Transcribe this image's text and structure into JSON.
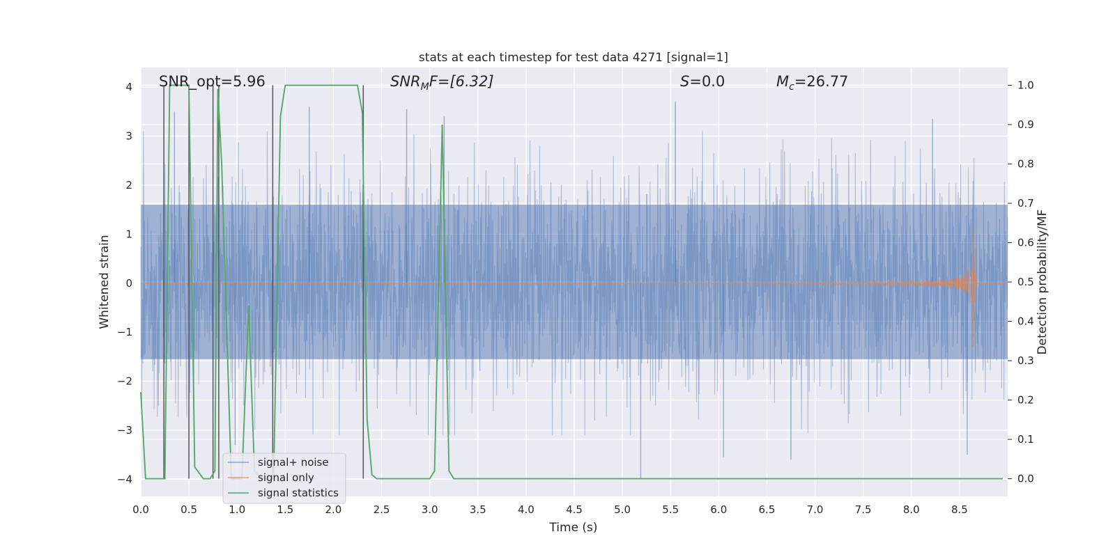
{
  "chart_data": {
    "type": "line",
    "title": "stats at each timestep for test data 4271 [signal=1]",
    "xlabel": "Time (s)",
    "ylabel_left": "Whitened strain",
    "ylabel_right": "Detection probability/MF",
    "xlim": [
      0.0,
      9.0
    ],
    "ylim_left": [
      -4.35,
      4.4
    ],
    "ylim_right": [
      -0.045,
      1.045
    ],
    "x_ticks": [
      0.0,
      0.5,
      1.0,
      1.5,
      2.0,
      2.5,
      3.0,
      3.5,
      4.0,
      4.5,
      5.0,
      5.5,
      6.0,
      6.5,
      7.0,
      7.5,
      8.0,
      8.5
    ],
    "x_tick_labels": [
      "0.0",
      "0.5",
      "1.0",
      "1.5",
      "2.0",
      "2.5",
      "3.0",
      "3.5",
      "4.0",
      "4.5",
      "5.0",
      "5.5",
      "6.0",
      "6.5",
      "7.0",
      "7.5",
      "8.0",
      "8.5"
    ],
    "y_left_ticks": [
      4,
      3,
      2,
      1,
      0,
      -1,
      -2,
      -3,
      -4
    ],
    "y_left_tick_labels": [
      "4",
      "3",
      "2",
      "1",
      "0",
      "−1",
      "−2",
      "−3",
      "−4"
    ],
    "y_right_ticks": [
      1.0,
      0.9,
      0.8,
      0.7,
      0.6,
      0.5,
      0.4,
      0.3,
      0.2,
      0.1,
      0.0
    ],
    "y_right_tick_labels": [
      "1.0",
      "0.9",
      "0.8",
      "0.7",
      "0.6",
      "0.5",
      "0.4",
      "0.3",
      "0.2",
      "0.1",
      "0.0"
    ],
    "annotations": {
      "snr_opt": "SNR_opt=5.96",
      "snr_mf_main": "SNR",
      "snr_mf_sub": "M",
      "snr_mf_tail": "F=[6.32]",
      "s_main": "S",
      "s_tail": "=0.0",
      "mc_main": "M",
      "mc_sub": "c",
      "mc_tail": "=26.77"
    },
    "legend": {
      "position": "lower-left",
      "entries": [
        "signal+ noise",
        "signal only",
        "signal statistics"
      ]
    },
    "series": [
      {
        "name": "signal+ noise",
        "color": "#4c72b0",
        "core_band": [
          -1.55,
          1.6
        ],
        "typical_peak": [
          -2.6,
          2.6
        ],
        "notable_peaks": [
          [
            0.35,
            3.5
          ],
          [
            1.75,
            3.6
          ],
          [
            2.76,
            3.55
          ],
          [
            3.15,
            3.4
          ],
          [
            5.55,
            3.7
          ],
          [
            8.22,
            3.35
          ],
          [
            5.19,
            -4.0
          ],
          [
            6.05,
            -3.55
          ],
          [
            6.75,
            -3.6
          ],
          [
            8.58,
            -3.5
          ],
          [
            0.55,
            -2.6
          ],
          [
            0.98,
            -3.3
          ]
        ]
      },
      {
        "name": "signal only",
        "color": "#dd8452",
        "chirp_start": 5.0,
        "merger_time": 8.65,
        "peak_amplitude": [
          -1.25,
          1.3
        ]
      },
      {
        "name": "signal statistics",
        "color": "#55a868",
        "axis": "right",
        "x": [
          0.0,
          0.05,
          0.25,
          0.3,
          0.5,
          0.56,
          0.65,
          0.72,
          0.77,
          0.8,
          0.84,
          0.94,
          1.05,
          1.12,
          1.18,
          1.25,
          1.3,
          1.38,
          1.45,
          1.5,
          2.25,
          2.3,
          2.35,
          2.4,
          2.45,
          2.5,
          2.6,
          3.0,
          3.05,
          3.13,
          3.2,
          3.25,
          8.95
        ],
        "y": [
          0.22,
          0.0,
          0.0,
          1.0,
          1.0,
          0.03,
          0.0,
          0.0,
          0.02,
          0.99,
          0.8,
          0.0,
          0.0,
          0.44,
          0.02,
          0.0,
          0.0,
          0.0,
          0.92,
          1.0,
          1.0,
          0.93,
          0.15,
          0.01,
          0.0,
          0.0,
          0.0,
          0.0,
          0.02,
          0.9,
          0.02,
          0.0,
          0.0
        ]
      },
      {
        "name": "vertical markers",
        "color": "#555555",
        "x": [
          0.24,
          0.5,
          0.75,
          0.81,
          1.37,
          2.31
        ]
      }
    ]
  }
}
